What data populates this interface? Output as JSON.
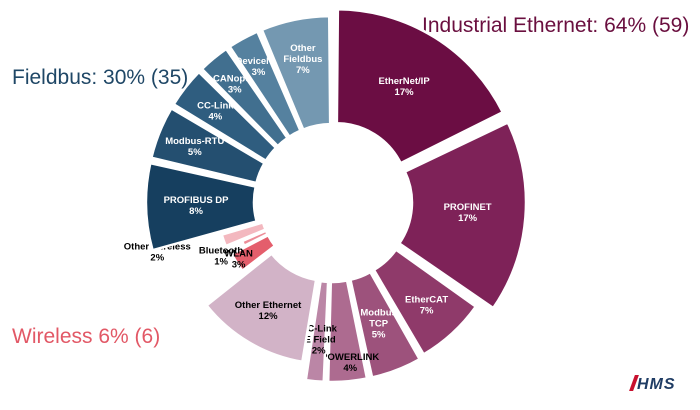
{
  "chart_data": {
    "type": "donut",
    "groups": [
      {
        "name": "Industrial Ethernet",
        "label": "Industrial Ethernet: 64% (59)"
      },
      {
        "name": "Fieldbus",
        "label": "Fieldbus: 30% (35)"
      },
      {
        "name": "Wireless",
        "label": "Wireless 6% (6)"
      }
    ],
    "segments": [
      {
        "group": "Industrial Ethernet",
        "name": "EtherNet/IP",
        "value": 17,
        "label": "17%",
        "color": "#6b0d43"
      },
      {
        "group": "Industrial Ethernet",
        "name": "PROFINET",
        "value": 17,
        "label": "17%",
        "color": "#7e2258"
      },
      {
        "group": "Industrial Ethernet",
        "name": "EtherCAT",
        "value": 7,
        "label": "7%",
        "color": "#8f3a6a"
      },
      {
        "group": "Industrial Ethernet",
        "name": "Modbus TCP",
        "value": 5,
        "label": "5%",
        "color": "#9d527c"
      },
      {
        "group": "Industrial Ethernet",
        "name": "POWERLINK",
        "value": 4,
        "label": "4%",
        "color": "#ad6b90"
      },
      {
        "group": "Industrial Ethernet",
        "name": "CC-Link IE Field",
        "value": 2,
        "label": "2%",
        "color": "#bb86a6"
      },
      {
        "group": "Industrial Ethernet",
        "name": "Other Ethernet",
        "value": 12,
        "label": "12%",
        "color": "#d2b3c7"
      },
      {
        "group": "Wireless",
        "name": "WLAN",
        "value": 3,
        "label": "3%",
        "color": "#e45e6c"
      },
      {
        "group": "Wireless",
        "name": "Bluetooth",
        "value": 1,
        "label": "1%",
        "color": "#ec8c97"
      },
      {
        "group": "Wireless",
        "name": "Other Wireless",
        "value": 2,
        "label": "2%",
        "color": "#f3b8bf"
      },
      {
        "group": "Fieldbus",
        "name": "PROFIBUS DP",
        "value": 8,
        "label": "8%",
        "color": "#163f5f"
      },
      {
        "group": "Fieldbus",
        "name": "Modbus-RTU",
        "value": 5,
        "label": "5%",
        "color": "#244f70"
      },
      {
        "group": "Fieldbus",
        "name": "CC-Link",
        "value": 4,
        "label": "4%",
        "color": "#2f5d7f"
      },
      {
        "group": "Fieldbus",
        "name": "CANopen",
        "value": 3,
        "label": "3%",
        "color": "#416f8f"
      },
      {
        "group": "Fieldbus",
        "name": "DeviceNet",
        "value": 3,
        "label": "3%",
        "color": "#55819f"
      },
      {
        "group": "Fieldbus",
        "name": "Other Fieldbus",
        "value": 7,
        "label": "7%",
        "color": "#7498b1"
      }
    ]
  },
  "logo": {
    "text": "HMS",
    "color": "#1f3c64",
    "accent": "#c8102e"
  }
}
